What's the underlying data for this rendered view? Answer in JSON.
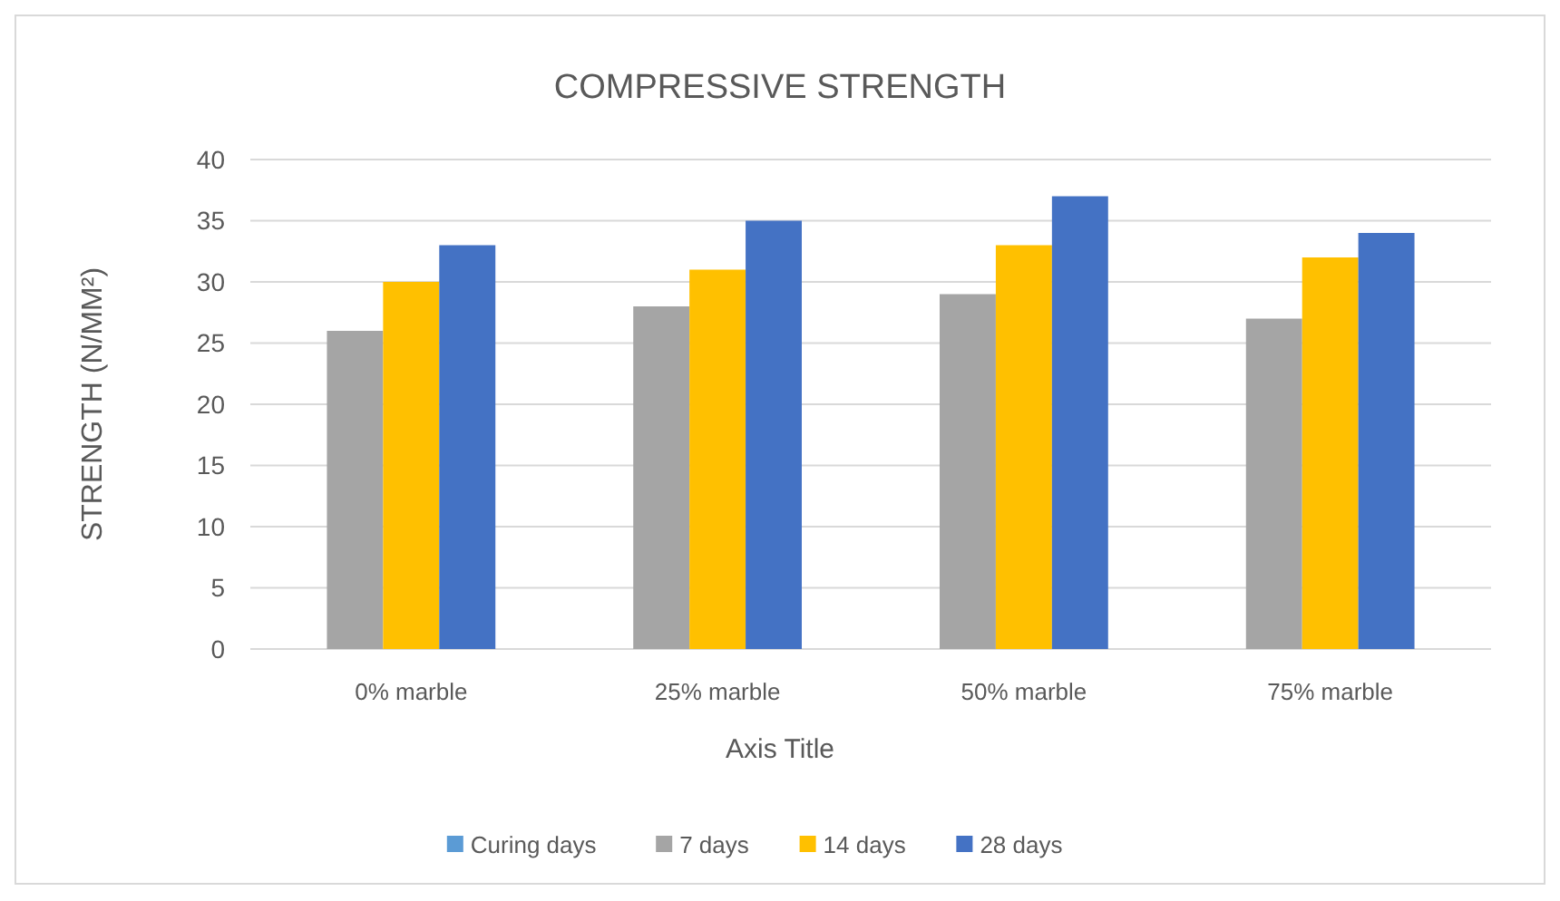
{
  "chart_data": {
    "type": "bar",
    "title": "COMPRESSIVE STRENGTH",
    "xlabel": "Axis Title",
    "ylabel": "STRENGTH (N/MM²)",
    "categories": [
      "0% marble",
      "25% marble",
      "50% marble",
      "75% marble"
    ],
    "series": [
      {
        "name": "Curing days",
        "color": "#5b9bd5",
        "values": [
          null,
          null,
          null,
          null
        ]
      },
      {
        "name": "7 days",
        "color": "#a5a5a5",
        "values": [
          26,
          28,
          29,
          27
        ]
      },
      {
        "name": "14 days",
        "color": "#ffc000",
        "values": [
          30,
          31,
          33,
          32
        ]
      },
      {
        "name": "28 days",
        "color": "#4472c4",
        "values": [
          33,
          35,
          37,
          34
        ]
      }
    ],
    "ylim": [
      0,
      40
    ],
    "yticks": [
      0,
      5,
      10,
      15,
      20,
      25,
      30,
      35,
      40
    ],
    "grid": "y",
    "legend": "bottom"
  }
}
